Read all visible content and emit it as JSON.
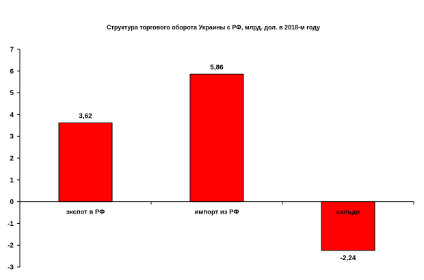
{
  "chart_data": {
    "type": "bar",
    "title": "Структура торгового оборота Украины с РФ, млрд. дол. в 2018-м году",
    "categories": [
      "экспот в РФ",
      "импорт из РФ",
      "сальдо"
    ],
    "values": [
      3.62,
      5.86,
      -2.24
    ],
    "value_labels": [
      "3,62",
      "5,86",
      "-2,24"
    ],
    "ylim": [
      -3,
      7
    ],
    "yticks": [
      -3,
      -2,
      -1,
      0,
      1,
      2,
      3,
      4,
      5,
      6,
      7
    ],
    "xlabel": "",
    "ylabel": "",
    "grid": false,
    "legend": "none",
    "colors": {
      "bar_fill": "#ff0000",
      "bar_stroke": "#000000",
      "axis": "#000000"
    }
  }
}
